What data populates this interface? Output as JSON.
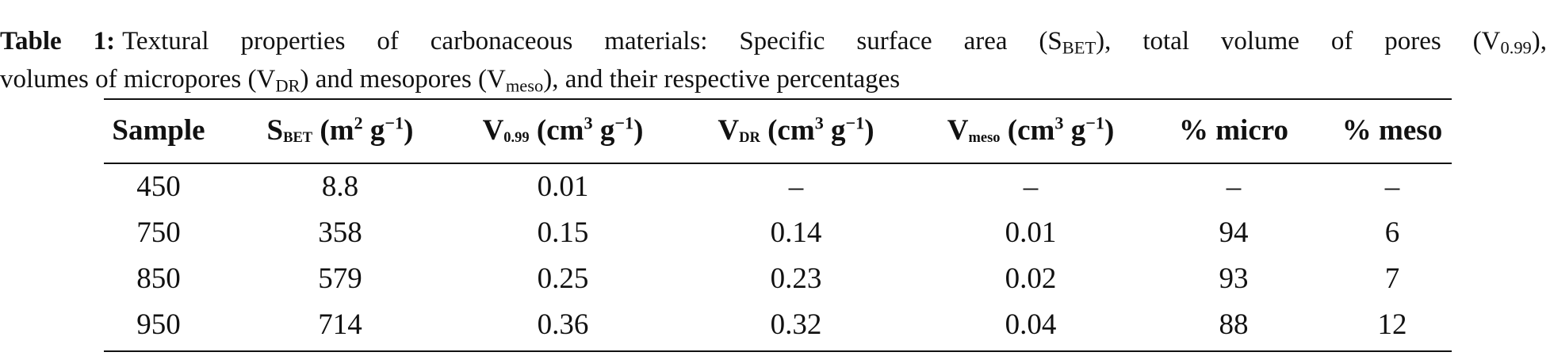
{
  "caption": {
    "label": "Table 1:",
    "lines": [
      [
        {
          "text": "Textural properties of carbonaceous materials: Specific surface area (S"
        },
        {
          "sub": "BET"
        },
        {
          "text": "), total volume of pores (V"
        },
        {
          "sub": "0.99"
        },
        {
          "text": "),"
        }
      ],
      [
        {
          "text": "volumes of micropores (V"
        },
        {
          "sub": "DR"
        },
        {
          "text": ") and mesopores (V"
        },
        {
          "sub": "meso"
        },
        {
          "text": "), and their respective percentages"
        }
      ]
    ]
  },
  "table": {
    "columns": [
      [
        {
          "text": "Sample"
        }
      ],
      [
        {
          "text": "S"
        },
        {
          "sub": "BET"
        },
        {
          "text": " (m"
        },
        {
          "sup": "2"
        },
        {
          "text": " g"
        },
        {
          "sup": "−1"
        },
        {
          "text": ")"
        }
      ],
      [
        {
          "text": "V"
        },
        {
          "sub": "0.99"
        },
        {
          "text": " (cm"
        },
        {
          "sup": "3"
        },
        {
          "text": " g"
        },
        {
          "sup": "−1"
        },
        {
          "text": ")"
        }
      ],
      [
        {
          "text": "V"
        },
        {
          "sub": "DR"
        },
        {
          "text": " (cm"
        },
        {
          "sup": "3"
        },
        {
          "text": " g"
        },
        {
          "sup": "−1"
        },
        {
          "text": ")"
        }
      ],
      [
        {
          "text": "V"
        },
        {
          "sub": "meso"
        },
        {
          "text": " (cm"
        },
        {
          "sup": "3"
        },
        {
          "text": " g"
        },
        {
          "sup": "−1"
        },
        {
          "text": ")"
        }
      ],
      [
        {
          "text": "% micro"
        }
      ],
      [
        {
          "text": "% meso"
        }
      ]
    ],
    "rows": [
      [
        "450",
        "8.8",
        "0.01",
        "–",
        "–",
        "–",
        "–"
      ],
      [
        "750",
        "358",
        "0.15",
        "0.14",
        "0.01",
        "94",
        "6"
      ],
      [
        "850",
        "579",
        "0.25",
        "0.23",
        "0.02",
        "93",
        "7"
      ],
      [
        "950",
        "714",
        "0.36",
        "0.32",
        "0.04",
        "88",
        "12"
      ]
    ]
  }
}
